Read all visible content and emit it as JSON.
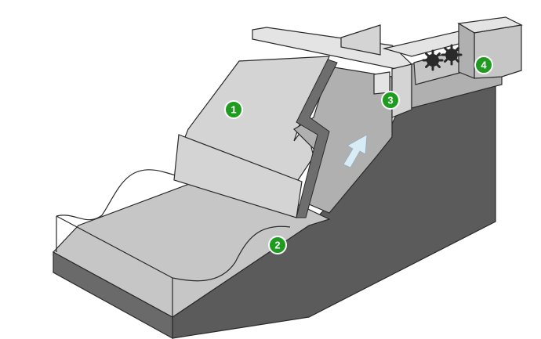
{
  "colors": {
    "background": "#ffffff",
    "outline": "#2a2a2a",
    "dark_face": "#5b5b5b",
    "base_front": "#6a6a6a",
    "ramp_light": "#d4d4d4",
    "ramp_mid": "#c6c6c6",
    "ramp_shade": "#b0b0b0",
    "gate_strip": "#6e6e6e",
    "top_cap": "#e4e4e4",
    "arrow_fill": "#d8ecf6",
    "marker_green": "#1f9c1f",
    "marker_border": "#ffffff"
  },
  "markers": [
    {
      "id": "1",
      "label": "1"
    },
    {
      "id": "2",
      "label": "2"
    },
    {
      "id": "3",
      "label": "3"
    },
    {
      "id": "4",
      "label": "4"
    }
  ],
  "icons": {
    "flow_arrow": "up-right-arrow-icon",
    "gear": "gear-icon"
  }
}
